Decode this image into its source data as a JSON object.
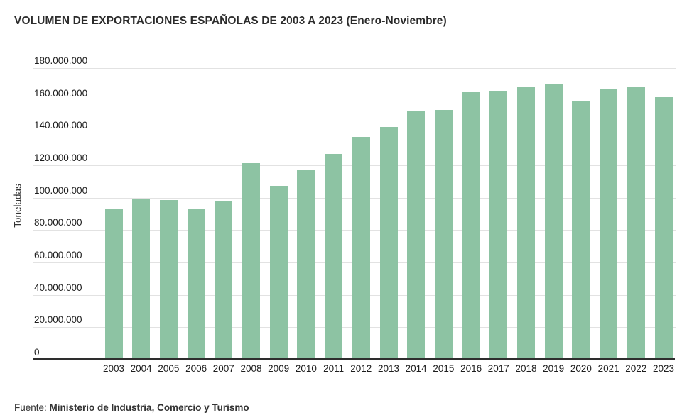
{
  "title": "VOLUMEN DE EXPORTACIONES ESPAÑOLAS DE 2003 A 2023 (Enero-Noviembre)",
  "source": {
    "prefix": "Fuente:",
    "name": "Ministerio de Industria, Comercio y Turismo"
  },
  "chart_data": {
    "type": "bar",
    "title": "VOLUMEN DE EXPORTACIONES ESPAÑOLAS DE 2003 A 2023 (Enero-Noviembre)",
    "categories": [
      "2003",
      "2004",
      "2005",
      "2006",
      "2007",
      "2008",
      "2009",
      "2010",
      "2011",
      "2012",
      "2013",
      "2014",
      "2015",
      "2016",
      "2017",
      "2018",
      "2019",
      "2020",
      "2021",
      "2022",
      "2023"
    ],
    "values": [
      93500000,
      99000000,
      98500000,
      93000000,
      98000000,
      121500000,
      107500000,
      117500000,
      127000000,
      137500000,
      143500000,
      153500000,
      154000000,
      165500000,
      166000000,
      168500000,
      170000000,
      159500000,
      167500000,
      168500000,
      162000000
    ],
    "xlabel": "",
    "ylabel": "Toneladas",
    "ylim": [
      0,
      180000000
    ],
    "ytick_interval": 20000000,
    "ytick_labels": [
      "0",
      "20.000.000",
      "40.000.000",
      "60.000.000",
      "80.000.000",
      "100.000.000",
      "120.000.000",
      "140.000.000",
      "160.000.000",
      "180.000.000"
    ],
    "grid": true,
    "legend": false,
    "bar_color": "#8dc3a3",
    "gridline_color": "#e2e2e2",
    "axis_color": "#2e2e2e"
  }
}
